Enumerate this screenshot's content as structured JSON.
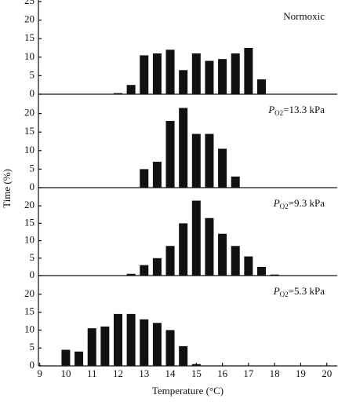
{
  "chart_data": [
    {
      "type": "bar",
      "title": "Normoxic",
      "ylabel": "Time (%)",
      "x": [
        12,
        12.5,
        13,
        13.5,
        14,
        14.5,
        15,
        15.5,
        16,
        16.5,
        17,
        17.5
      ],
      "values": [
        0.3,
        2.5,
        10.5,
        11,
        12,
        6.5,
        11,
        9,
        9.5,
        11,
        12.5,
        4
      ],
      "color": "#111111",
      "xlim": [
        8.95,
        20.4
      ],
      "ylim": [
        0,
        25
      ],
      "yticks": [
        0,
        5,
        10,
        15,
        20,
        25
      ]
    },
    {
      "type": "bar",
      "label_symbol": "P",
      "label_subscript": "O2",
      "label_value": "=13.3 kPa",
      "x": [
        13,
        13.5,
        14,
        14.5,
        15,
        15.5,
        16,
        16.5
      ],
      "values": [
        5,
        7,
        18,
        21.5,
        14.5,
        14.5,
        10.5,
        3
      ],
      "color": "#111111",
      "xlim": [
        8.95,
        20.4
      ],
      "ylim": [
        0,
        25
      ],
      "yticks": [
        0,
        5,
        10,
        15,
        20
      ]
    },
    {
      "type": "bar",
      "label_symbol": "P",
      "label_subscript": "O2",
      "label_value": "=9.3 kPa",
      "x": [
        12.5,
        13,
        13.5,
        14,
        14.5,
        15,
        15.5,
        16,
        16.5,
        17,
        17.5,
        18
      ],
      "values": [
        0.5,
        3,
        5,
        8.5,
        15,
        21.5,
        16.5,
        12,
        8.5,
        5.5,
        2.5,
        0.3
      ],
      "color": "#111111",
      "xlim": [
        8.95,
        20.4
      ],
      "ylim": [
        0,
        25
      ],
      "yticks": [
        0,
        5,
        10,
        15,
        20
      ]
    },
    {
      "type": "bar",
      "label_symbol": "P",
      "label_subscript": "O2",
      "label_value": "=5.3 kPa",
      "x": [
        10,
        10.5,
        11,
        11.5,
        12,
        12.5,
        13,
        13.5,
        14,
        14.5,
        15
      ],
      "values": [
        4.5,
        4,
        10.5,
        11,
        14.5,
        14.5,
        13,
        12,
        10,
        5.5,
        0.5
      ],
      "color": "#111111",
      "xlim": [
        8.95,
        20.4
      ],
      "ylim": [
        0,
        25
      ],
      "yticks": [
        0,
        5,
        10,
        15,
        20
      ],
      "xticks": [
        9,
        10,
        11,
        12,
        13,
        14,
        15,
        16,
        17,
        18,
        19,
        20
      ],
      "xlabel": "Temperature (°C)"
    }
  ]
}
